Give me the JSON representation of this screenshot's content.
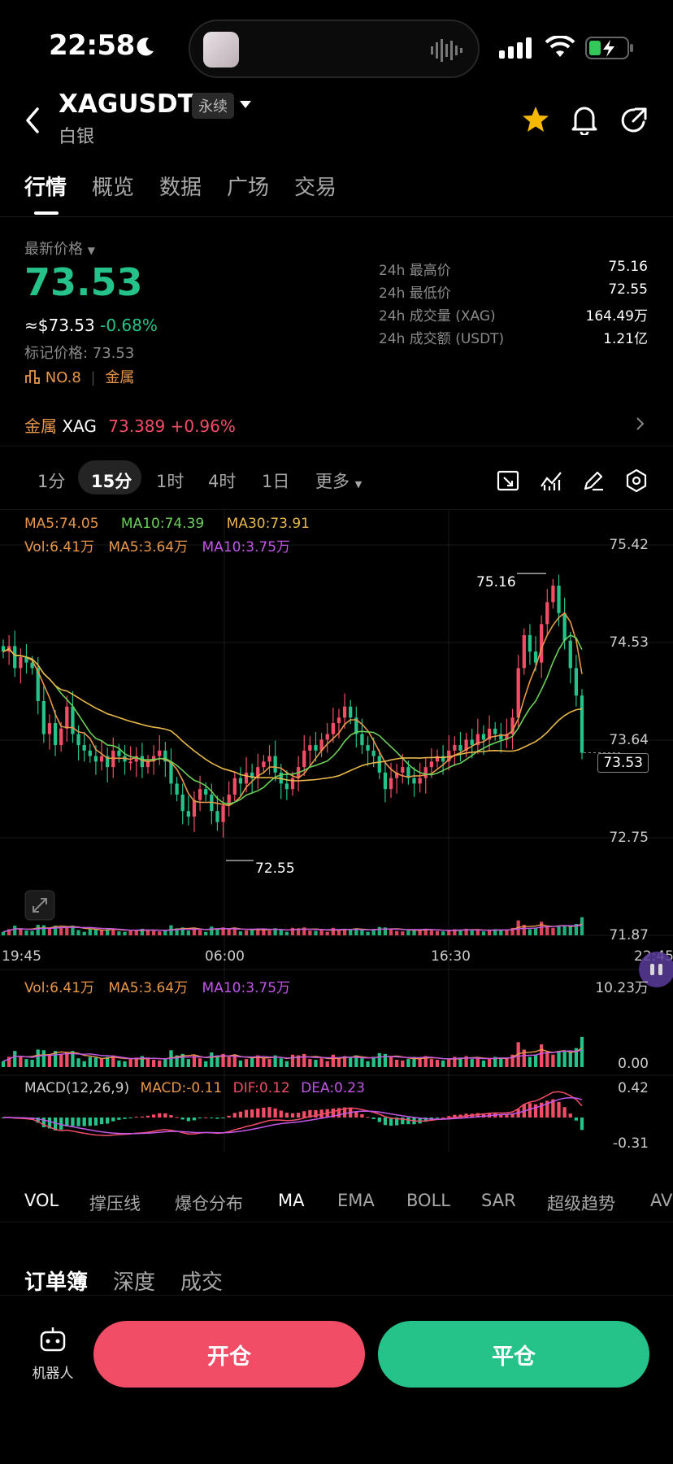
{
  "status_bar": {
    "time": "22:58"
  },
  "header": {
    "symbol": "XAGUSDT",
    "contract_type": "永续",
    "subtitle": "白银"
  },
  "tabs": [
    {
      "label": "行情",
      "active": true
    },
    {
      "label": "概览",
      "active": false
    },
    {
      "label": "数据",
      "active": false
    },
    {
      "label": "广场",
      "active": false
    },
    {
      "label": "交易",
      "active": false
    }
  ],
  "price": {
    "label": "最新价格",
    "last": "73.53",
    "usd_approx": "≈$73.53",
    "change_pct": "-0.68%",
    "mark_price": "标记价格: 73.53",
    "rank": "NO.8",
    "category": "金属"
  },
  "stats": [
    {
      "label": "24h 最高价",
      "value": "75.16"
    },
    {
      "label": "24h 最低价",
      "value": "72.55"
    },
    {
      "label": "24h 成交量 (XAG)",
      "value": "164.49万"
    },
    {
      "label": "24h 成交额 (USDT)",
      "value": "1.21亿"
    }
  ],
  "sector": {
    "category": "金属",
    "symbol": "XAG",
    "price": "73.389",
    "change": "+0.96%"
  },
  "intervals": [
    {
      "label": "1分",
      "active": false
    },
    {
      "label": "15分",
      "active": true
    },
    {
      "label": "1时",
      "active": false
    },
    {
      "label": "4时",
      "active": false
    },
    {
      "label": "1日",
      "active": false
    },
    {
      "label": "更多",
      "active": false
    }
  ],
  "legend": {
    "ma5": "MA5:74.05",
    "ma10": "MA10:74.39",
    "ma30": "MA30:73.91",
    "vol": "Vol:6.41万",
    "vol_ma5": "MA5:3.64万",
    "vol_ma10": "MA10:3.75万",
    "macd_params": "MACD(12,26,9)",
    "macd_val": "MACD:-0.11",
    "dif": "DIF:0.12",
    "dea": "DEA:0.23"
  },
  "colors": {
    "up": "#f24d66",
    "down": "#25c28a",
    "ma5": "#e8974a",
    "ma10": "#6cd05a",
    "ma30": "#e8b84a",
    "purple": "#c257e8"
  },
  "chart_data": {
    "type": "candlestick",
    "interval": "15分",
    "price_axis_labels": [
      "75.42",
      "74.53",
      "73.64",
      "72.75",
      "71.87"
    ],
    "time_labels": [
      "19:45",
      "06:00",
      "16:30",
      "22:45"
    ],
    "high_marker": "75.16",
    "low_marker": "72.55",
    "current_price": "73.53",
    "volume_axis_labels": [
      "10.23万",
      "0.00"
    ],
    "macd_axis_labels": [
      "0.42",
      "-0.31"
    ],
    "ylim": [
      71.87,
      75.42
    ],
    "close_series": [
      74.45,
      74.5,
      74.3,
      74.4,
      74.35,
      74.3,
      74.0,
      73.7,
      73.8,
      73.6,
      73.75,
      73.95,
      73.7,
      73.6,
      73.55,
      73.5,
      73.45,
      73.5,
      73.4,
      73.55,
      73.5,
      73.45,
      73.45,
      73.5,
      73.4,
      73.45,
      73.5,
      73.55,
      73.45,
      73.25,
      73.15,
      73.0,
      72.95,
      73.1,
      73.2,
      73.15,
      73.0,
      72.9,
      73.05,
      73.15,
      73.3,
      73.25,
      73.35,
      73.3,
      73.4,
      73.45,
      73.5,
      73.35,
      73.25,
      73.2,
      73.3,
      73.4,
      73.55,
      73.6,
      73.55,
      73.65,
      73.7,
      73.8,
      73.85,
      73.95,
      73.85,
      73.7,
      73.6,
      73.55,
      73.5,
      73.35,
      73.2,
      73.3,
      73.35,
      73.4,
      73.3,
      73.25,
      73.3,
      73.4,
      73.45,
      73.5,
      73.45,
      73.55,
      73.6,
      73.55,
      73.65,
      73.6,
      73.7,
      73.65,
      73.75,
      73.7,
      73.65,
      73.7,
      73.85,
      74.3,
      74.6,
      74.45,
      74.35,
      74.7,
      74.9,
      75.05,
      74.8,
      74.55,
      74.3,
      74.05,
      73.53
    ]
  },
  "indicator_tabs": [
    {
      "label": "VOL",
      "active": true
    },
    {
      "label": "撑压线",
      "active": false
    },
    {
      "label": "爆仓分布",
      "active": false
    },
    {
      "label": "MA",
      "active": true
    },
    {
      "label": "EMA",
      "active": false
    },
    {
      "label": "BOLL",
      "active": false
    },
    {
      "label": "SAR",
      "active": false
    },
    {
      "label": "超级趋势",
      "active": false
    },
    {
      "label": "AV",
      "active": false
    }
  ],
  "orderbook_tabs": [
    {
      "label": "订单簿",
      "active": true
    },
    {
      "label": "深度",
      "active": false
    },
    {
      "label": "成交",
      "active": false
    }
  ],
  "bottom_bar": {
    "robot_label": "机器人",
    "open_label": "开仓",
    "close_label": "平仓"
  }
}
